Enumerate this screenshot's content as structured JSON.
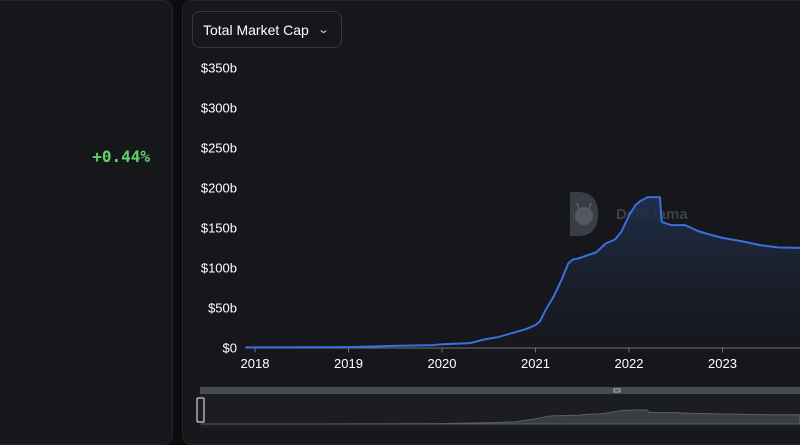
{
  "stats": {
    "change_pct": "+0.44%"
  },
  "metric_select": {
    "label": "Total Market Cap"
  },
  "watermark": {
    "text": "DefiLlama"
  },
  "colors": {
    "line": "#3b6ee0",
    "positive": "#63d16b",
    "panel": "#16171b"
  },
  "chart_data": {
    "type": "area",
    "title": "",
    "xlabel": "",
    "ylabel": "",
    "ylim": [
      0,
      350
    ],
    "y_ticks": [
      "$0",
      "$50b",
      "$100b",
      "$150b",
      "$200b",
      "$250b",
      "$300b",
      "$350b"
    ],
    "y_tick_values": [
      0,
      50,
      100,
      150,
      200,
      250,
      300,
      350
    ],
    "x_ticks": [
      "2018",
      "2019",
      "2020",
      "2021",
      "2022",
      "2023"
    ],
    "x_tick_values": [
      2018.0,
      2019.0,
      2020.0,
      2021.0,
      2022.0,
      2023.0
    ],
    "xlim": [
      2017.9,
      2023.85
    ],
    "series": [
      {
        "name": "",
        "x": [
          2017.9,
          2018.5,
          2019.0,
          2019.5,
          2019.9,
          2020.0,
          2020.2,
          2020.3,
          2020.45,
          2020.6,
          2020.75,
          2020.9,
          2021.0,
          2021.05,
          2021.1,
          2021.2,
          2021.28,
          2021.35,
          2021.4,
          2021.45,
          2021.55,
          2021.65,
          2021.75,
          2021.85,
          2021.92,
          2022.0,
          2022.07,
          2022.12,
          2022.2,
          2022.3,
          2022.33,
          2022.35,
          2022.45,
          2022.6,
          2022.75,
          2022.9,
          2023.0,
          2023.2,
          2023.4,
          2023.6,
          2023.85
        ],
        "values": [
          0.1,
          0.2,
          0.5,
          2,
          3,
          4,
          5,
          5.5,
          10,
          13,
          18,
          23,
          28,
          33,
          45,
          65,
          85,
          105,
          110,
          111,
          115,
          119,
          130,
          135,
          145,
          165,
          178,
          183,
          188,
          188,
          188,
          157,
          153,
          153,
          145,
          140,
          137,
          133,
          128,
          125,
          124.5
        ]
      }
    ]
  }
}
